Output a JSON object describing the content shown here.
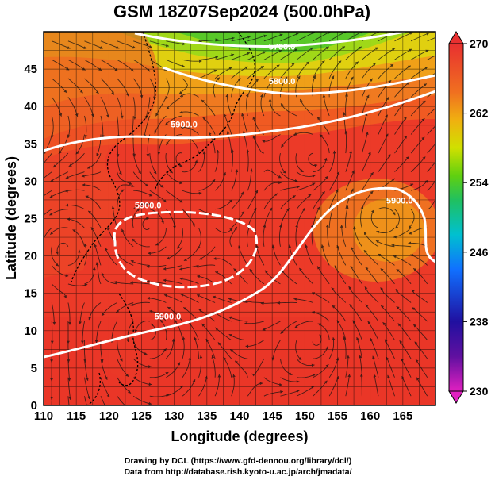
{
  "title": "GSM 18Z07Sep2024 (500.0hPa)",
  "axes": {
    "xlabel": "Longitude (degrees)",
    "ylabel": "Latitude  (degrees)",
    "x_range": [
      110,
      170
    ],
    "y_range": [
      0,
      50
    ],
    "x_ticks": [
      "110",
      "115",
      "120",
      "125",
      "130",
      "135",
      "140",
      "145",
      "150",
      "155",
      "160",
      "165"
    ],
    "y_ticks": [
      "0",
      "5",
      "10",
      "15",
      "20",
      "25",
      "30",
      "35",
      "40",
      "45"
    ],
    "grid": true
  },
  "colorbar": {
    "range": [
      230,
      270
    ],
    "ticks": [
      "230",
      "238",
      "246",
      "254",
      "262",
      "270"
    ],
    "colors": [
      "#e020c0",
      "#2010a0",
      "#1050ff",
      "#00c0d0",
      "#20c040",
      "#60d010",
      "#e0e000",
      "#f0a010",
      "#f07020",
      "#f04030",
      "#e83020"
    ]
  },
  "contour_labels": [
    {
      "text": "5700.0",
      "lon": 146.5,
      "lat": 47.6
    },
    {
      "text": "5800.0",
      "lon": 146.5,
      "lat": 43.0
    },
    {
      "text": "5900.0",
      "lon": 131.5,
      "lat": 37.2
    },
    {
      "text": "5900.0",
      "lon": 126.0,
      "lat": 26.4
    },
    {
      "text": "5900.0",
      "lon": 129.0,
      "lat": 11.5
    },
    {
      "text": "5900.0",
      "lon": 164.5,
      "lat": 27.0
    }
  ],
  "credits": [
    "Drawing by DCL (https://www.gfd-dennou.org/library/dcl/)",
    "Data from http://database.rish.kyoto-u.ac.jp/arch/jmadata/"
  ]
}
